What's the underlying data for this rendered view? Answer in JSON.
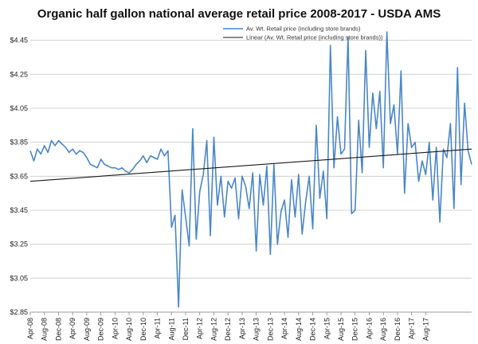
{
  "chart_data": {
    "type": "line",
    "title": "Organic half gallon national average retail price 2008-2017 - USDA AMS",
    "xlabel": "",
    "ylabel": "",
    "ylim": [
      2.85,
      4.5
    ],
    "yticks": [
      "$2.85",
      "$3.05",
      "$3.25",
      "$3.45",
      "$3.65",
      "$3.85",
      "$4.05",
      "$4.25",
      "$4.45"
    ],
    "xticks": [
      "Apr-08",
      "Aug-08",
      "Dec-08",
      "Apr-09",
      "Aug-09",
      "Dec-09",
      "Apr-10",
      "Aug-10",
      "Dec-10",
      "Apr-11",
      "Aug-11",
      "Dec-11",
      "Apr-12",
      "Aug-12",
      "Dec-12",
      "Apr-13",
      "Aug-13",
      "Dec-13",
      "Apr-14",
      "Aug-14",
      "Dec-14",
      "Apr-15",
      "Aug-15",
      "Dec-15",
      "Apr-16",
      "Aug-16",
      "Dec-16",
      "Apr-17",
      "Aug-17"
    ],
    "grid": true,
    "legend_position": "top-right",
    "series": [
      {
        "name": "Av. Wt. Retail price (including store brands)",
        "color": "#4a86c8",
        "values": [
          3.8,
          3.74,
          3.81,
          3.78,
          3.83,
          3.79,
          3.86,
          3.83,
          3.86,
          3.84,
          3.82,
          3.79,
          3.81,
          3.78,
          3.8,
          3.79,
          3.76,
          3.72,
          3.71,
          3.7,
          3.75,
          3.72,
          3.71,
          3.7,
          3.7,
          3.69,
          3.7,
          3.68,
          3.67,
          3.69,
          3.72,
          3.74,
          3.77,
          3.73,
          3.77,
          3.76,
          3.75,
          3.81,
          3.77,
          3.8,
          3.35,
          3.42,
          2.88,
          3.57,
          3.41,
          3.24,
          3.93,
          3.28,
          3.56,
          3.66,
          3.86,
          3.3,
          3.88,
          3.48,
          3.65,
          3.41,
          3.62,
          3.58,
          3.64,
          3.4,
          3.65,
          3.59,
          3.46,
          3.67,
          3.21,
          3.66,
          3.48,
          3.71,
          3.19,
          3.72,
          3.25,
          3.44,
          3.51,
          3.29,
          3.63,
          3.41,
          3.66,
          3.31,
          3.5,
          3.65,
          3.34,
          3.95,
          3.52,
          3.68,
          3.4,
          4.42,
          3.7,
          4.0,
          3.78,
          3.81,
          4.47,
          3.43,
          3.45,
          3.98,
          3.67,
          4.39,
          3.82,
          4.14,
          3.93,
          4.15,
          3.7,
          4.5,
          3.96,
          4.07,
          3.78,
          4.27,
          3.55,
          3.96,
          3.82,
          3.85,
          3.62,
          3.74,
          3.66,
          3.85,
          3.51,
          3.82,
          3.38,
          3.81,
          3.76,
          3.96,
          3.46,
          4.29,
          3.6,
          4.08,
          3.8,
          3.72
        ],
        "x_start": "Apr-08",
        "x_end": "Dec-17"
      },
      {
        "name": "Linear (Av. Wt. Retail price (including store brands))",
        "color": "#1a1a1a",
        "values": [
          3.62,
          3.81
        ]
      }
    ]
  }
}
